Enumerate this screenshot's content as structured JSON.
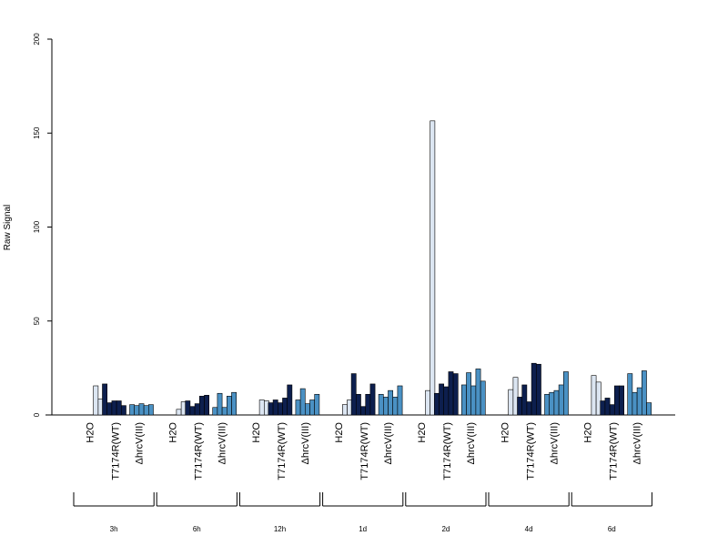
{
  "chart_data": {
    "type": "bar",
    "ylabel": "Raw Signal",
    "ylim": [
      0,
      200
    ],
    "yticks": [
      0,
      50,
      100,
      150,
      200
    ],
    "grid": false,
    "legend": "none",
    "treatments": [
      "H2O",
      "T7174R(WT)",
      "ΔhrcV(III)"
    ],
    "treatment_colors": {
      "H2O": "#dce6f2",
      "T7174R(WT)": "#0d1f4e",
      "ΔhrcV(III)": "#4a91c4"
    },
    "timepoints": [
      {
        "label": "3h",
        "H2O": [
          0,
          15.5,
          8.5
        ],
        "T7174R(WT)": [
          16.5,
          6.5,
          7.5,
          7.5,
          5
        ],
        "ΔhrcV(III)": [
          5.5,
          5,
          6,
          5,
          5.5
        ]
      },
      {
        "label": "6h",
        "H2O": [
          3,
          7
        ],
        "T7174R(WT)": [
          7.5,
          4.5,
          6,
          10,
          10.5
        ],
        "ΔhrcV(III)": [
          4,
          11.5,
          4,
          10,
          12
        ]
      },
      {
        "label": "12h",
        "H2O": [
          8,
          7.5
        ],
        "T7174R(WT)": [
          6.5,
          8,
          6.5,
          9,
          16
        ],
        "ΔhrcV(III)": [
          8,
          14,
          6,
          8,
          11
        ]
      },
      {
        "label": "1d",
        "H2O": [
          5.5,
          8
        ],
        "T7174R(WT)": [
          22,
          11,
          4.5,
          11,
          16.5
        ],
        "ΔhrcV(III)": [
          11,
          9.5,
          13,
          9.5,
          15.5
        ]
      },
      {
        "label": "2d",
        "H2O": [
          13,
          156.5
        ],
        "T7174R(WT)": [
          11.5,
          16.5,
          15,
          23,
          22
        ],
        "ΔhrcV(III)": [
          16,
          22.5,
          15.5,
          24.5,
          18
        ]
      },
      {
        "label": "4d",
        "H2O": [
          13.5,
          20
        ],
        "T7174R(WT)": [
          9.5,
          16,
          7,
          27.5,
          27
        ],
        "ΔhrcV(III)": [
          11,
          12,
          13,
          16,
          23
        ]
      },
      {
        "label": "6d",
        "H2O": [
          21,
          17.5
        ],
        "T7174R(WT)": [
          7.5,
          9,
          5.5,
          15.5,
          15.5
        ],
        "ΔhrcV(III)": [
          22,
          12,
          14.5,
          23.5,
          6.5
        ]
      }
    ]
  }
}
